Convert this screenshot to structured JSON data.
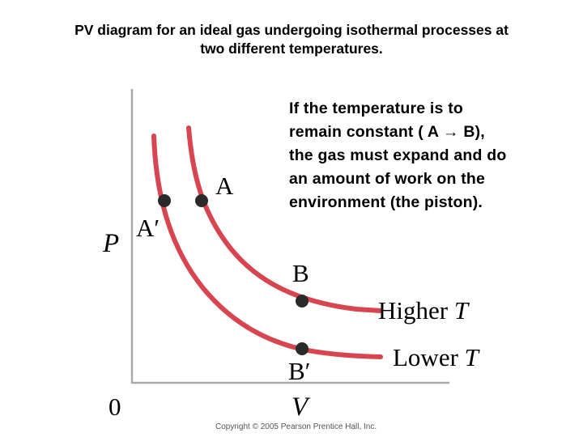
{
  "title": {
    "line1": "PV diagram for an ideal gas undergoing isothermal processes at",
    "line2": "two different temperatures."
  },
  "note": {
    "lines": [
      "If the temperature is to",
      "remain constant ( A → B),",
      "the gas must expand and do",
      "an amount of work on the",
      "environment (the piston)."
    ]
  },
  "diagram": {
    "y_axis_label": "P",
    "x_axis_label": "V",
    "origin_label": "0",
    "curves": [
      {
        "label": "Higher T",
        "label_text": "Higher ",
        "label_var": "T",
        "color": "#d64550"
      },
      {
        "label": "Lower T",
        "label_text": "Lower ",
        "label_var": "T",
        "color": "#d64550"
      }
    ],
    "points": [
      {
        "label": "A",
        "curve": "Higher T"
      },
      {
        "label": "A′",
        "curve": "Lower T"
      },
      {
        "label": "B",
        "curve": "Higher T"
      },
      {
        "label": "B′",
        "curve": "Lower T"
      }
    ],
    "axis_color": "#a9a9a9",
    "point_color": "#2a2a2a"
  },
  "copyright": "Copyright © 2005 Pearson Prentice Hall, Inc."
}
